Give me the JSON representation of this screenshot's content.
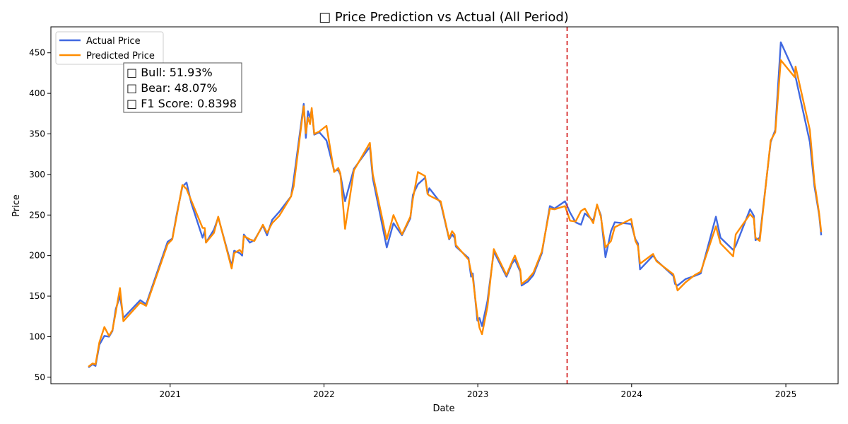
{
  "chart_data": {
    "type": "line",
    "title": "□ Price Prediction vs Actual (All Period)",
    "xlabel": "Date",
    "ylabel": "Price",
    "xlim": [
      "2020-03-24",
      "2025-05-05"
    ],
    "ylim": [
      42,
      482
    ],
    "x_ticks": [
      "2021-01-01",
      "2022-01-01",
      "2023-01-01",
      "2024-01-01",
      "2025-01-01"
    ],
    "x_tick_labels": [
      "2021",
      "2022",
      "2023",
      "2024",
      "2025"
    ],
    "y_ticks": [
      50,
      100,
      150,
      200,
      250,
      300,
      350,
      400,
      450
    ],
    "y_tick_labels": [
      "50",
      "100",
      "150",
      "200",
      "250",
      "300",
      "350",
      "400",
      "450"
    ],
    "grid": false,
    "legend_position": "upper-left",
    "split_date": "2023-08-01",
    "split_line_color": "#d62728",
    "annotation_lines": [
      "□ Bull: 51.93%",
      "□ Bear: 48.07%",
      "□ F1 Score: 0.8398"
    ],
    "series": [
      {
        "name": "Actual Price",
        "color": "#4169e1",
        "points": [
          [
            "2020-06-21",
            62
          ],
          [
            "2020-07-01",
            66
          ],
          [
            "2020-07-08",
            64
          ],
          [
            "2020-07-17",
            90
          ],
          [
            "2020-07-29",
            101
          ],
          [
            "2020-08-09",
            100
          ],
          [
            "2020-08-17",
            107
          ],
          [
            "2020-08-25",
            134
          ],
          [
            "2020-09-04",
            150
          ],
          [
            "2020-09-12",
            123
          ],
          [
            "2020-10-22",
            145
          ],
          [
            "2020-11-05",
            140
          ],
          [
            "2020-12-26",
            217
          ],
          [
            "2021-01-06",
            221
          ],
          [
            "2021-01-17",
            252
          ],
          [
            "2021-01-30",
            285
          ],
          [
            "2021-02-09",
            290
          ],
          [
            "2021-02-20",
            265
          ],
          [
            "2021-03-19",
            222
          ],
          [
            "2021-03-24",
            230
          ],
          [
            "2021-03-27",
            216
          ],
          [
            "2021-04-15",
            232
          ],
          [
            "2021-04-25",
            247
          ],
          [
            "2021-05-27",
            187
          ],
          [
            "2021-06-02",
            206
          ],
          [
            "2021-06-15",
            203
          ],
          [
            "2021-06-21",
            200
          ],
          [
            "2021-06-25",
            226
          ],
          [
            "2021-07-09",
            216
          ],
          [
            "2021-07-20",
            219
          ],
          [
            "2021-08-09",
            237
          ],
          [
            "2021-08-19",
            225
          ],
          [
            "2021-08-31",
            244
          ],
          [
            "2021-09-17",
            254
          ],
          [
            "2021-10-15",
            273
          ],
          [
            "2021-10-21",
            293
          ],
          [
            "2021-11-14",
            387
          ],
          [
            "2021-11-19",
            345
          ],
          [
            "2021-11-24",
            378
          ],
          [
            "2021-11-29",
            370
          ],
          [
            "2021-12-03",
            380
          ],
          [
            "2021-12-09",
            349
          ],
          [
            "2021-12-21",
            352
          ],
          [
            "2022-01-07",
            342
          ],
          [
            "2022-01-25",
            305
          ],
          [
            "2022-02-04",
            305
          ],
          [
            "2022-02-09",
            300
          ],
          [
            "2022-02-20",
            267
          ],
          [
            "2022-03-13",
            307
          ],
          [
            "2022-04-20",
            334
          ],
          [
            "2022-04-27",
            295
          ],
          [
            "2022-05-30",
            210
          ],
          [
            "2022-06-15",
            240
          ],
          [
            "2022-07-05",
            225
          ],
          [
            "2022-07-25",
            246
          ],
          [
            "2022-07-31",
            275
          ],
          [
            "2022-08-12",
            288
          ],
          [
            "2022-08-29",
            296
          ],
          [
            "2022-09-04",
            276
          ],
          [
            "2022-09-08",
            283
          ],
          [
            "2022-10-05",
            265
          ],
          [
            "2022-10-25",
            220
          ],
          [
            "2022-11-01",
            226
          ],
          [
            "2022-11-07",
            222
          ],
          [
            "2022-11-10",
            211
          ],
          [
            "2022-12-10",
            197
          ],
          [
            "2022-12-16",
            174
          ],
          [
            "2022-12-20",
            178
          ],
          [
            "2022-12-31",
            120
          ],
          [
            "2023-01-05",
            123
          ],
          [
            "2023-01-11",
            113
          ],
          [
            "2023-01-24",
            144
          ],
          [
            "2023-02-08",
            205
          ],
          [
            "2023-03-10",
            174
          ],
          [
            "2023-03-23",
            190
          ],
          [
            "2023-03-30",
            195
          ],
          [
            "2023-04-12",
            180
          ],
          [
            "2023-04-15",
            163
          ],
          [
            "2023-04-30",
            168
          ],
          [
            "2023-05-13",
            176
          ],
          [
            "2023-06-02",
            203
          ],
          [
            "2023-06-21",
            261
          ],
          [
            "2023-07-02",
            258
          ],
          [
            "2023-07-27",
            267
          ],
          [
            "2023-08-08",
            253
          ],
          [
            "2023-08-21",
            241
          ],
          [
            "2023-09-03",
            238
          ],
          [
            "2023-09-12",
            252
          ],
          [
            "2023-10-02",
            243
          ],
          [
            "2023-10-11",
            262
          ],
          [
            "2023-10-20",
            250
          ],
          [
            "2023-10-31",
            198
          ],
          [
            "2023-11-13",
            230
          ],
          [
            "2023-11-22",
            241
          ],
          [
            "2023-12-31",
            239
          ],
          [
            "2024-01-10",
            220
          ],
          [
            "2024-01-16",
            215
          ],
          [
            "2024-01-21",
            183
          ],
          [
            "2024-02-21",
            200
          ],
          [
            "2024-02-29",
            194
          ],
          [
            "2024-04-09",
            175
          ],
          [
            "2024-04-13",
            165
          ],
          [
            "2024-04-19",
            163
          ],
          [
            "2024-05-08",
            171
          ],
          [
            "2024-05-30",
            175
          ],
          [
            "2024-06-13",
            178
          ],
          [
            "2024-07-19",
            248
          ],
          [
            "2024-07-30",
            222
          ],
          [
            "2024-08-29",
            207
          ],
          [
            "2024-09-04",
            212
          ],
          [
            "2024-10-08",
            257
          ],
          [
            "2024-10-17",
            249
          ],
          [
            "2024-10-21",
            219
          ],
          [
            "2024-10-31",
            222
          ],
          [
            "2024-11-26",
            340
          ],
          [
            "2024-12-07",
            355
          ],
          [
            "2024-12-20",
            463
          ],
          [
            "2025-01-22",
            425
          ],
          [
            "2025-02-27",
            340
          ],
          [
            "2025-03-10",
            285
          ],
          [
            "2025-03-21",
            250
          ],
          [
            "2025-03-26",
            225
          ]
        ]
      },
      {
        "name": "Predicted Price",
        "color": "#ff8c00",
        "points": [
          [
            "2020-06-21",
            63
          ],
          [
            "2020-07-01",
            67
          ],
          [
            "2020-07-08",
            66
          ],
          [
            "2020-07-17",
            93
          ],
          [
            "2020-07-29",
            112
          ],
          [
            "2020-08-09",
            101
          ],
          [
            "2020-08-17",
            108
          ],
          [
            "2020-08-25",
            130
          ],
          [
            "2020-09-04",
            160
          ],
          [
            "2020-09-12",
            119
          ],
          [
            "2020-10-22",
            142
          ],
          [
            "2020-11-05",
            138
          ],
          [
            "2020-12-26",
            214
          ],
          [
            "2021-01-06",
            220
          ],
          [
            "2021-01-17",
            250
          ],
          [
            "2021-01-30",
            287
          ],
          [
            "2021-02-09",
            282
          ],
          [
            "2021-02-20",
            268
          ],
          [
            "2021-03-19",
            234
          ],
          [
            "2021-03-24",
            234
          ],
          [
            "2021-03-27",
            216
          ],
          [
            "2021-04-15",
            228
          ],
          [
            "2021-04-25",
            248
          ],
          [
            "2021-05-27",
            184
          ],
          [
            "2021-06-02",
            203
          ],
          [
            "2021-06-15",
            207
          ],
          [
            "2021-06-21",
            203
          ],
          [
            "2021-06-25",
            224
          ],
          [
            "2021-07-09",
            220
          ],
          [
            "2021-07-20",
            218
          ],
          [
            "2021-08-09",
            238
          ],
          [
            "2021-08-19",
            228
          ],
          [
            "2021-08-31",
            240
          ],
          [
            "2021-09-17",
            249
          ],
          [
            "2021-10-15",
            273
          ],
          [
            "2021-10-21",
            285
          ],
          [
            "2021-11-14",
            384
          ],
          [
            "2021-11-19",
            351
          ],
          [
            "2021-11-24",
            370
          ],
          [
            "2021-11-29",
            362
          ],
          [
            "2021-12-03",
            382
          ],
          [
            "2021-12-09",
            350
          ],
          [
            "2021-12-21",
            353
          ],
          [
            "2022-01-07",
            360
          ],
          [
            "2022-01-25",
            303
          ],
          [
            "2022-02-04",
            308
          ],
          [
            "2022-02-09",
            301
          ],
          [
            "2022-02-20",
            233
          ],
          [
            "2022-03-13",
            305
          ],
          [
            "2022-04-20",
            339
          ],
          [
            "2022-04-27",
            300
          ],
          [
            "2022-05-30",
            220
          ],
          [
            "2022-06-15",
            250
          ],
          [
            "2022-07-05",
            226
          ],
          [
            "2022-07-25",
            248
          ],
          [
            "2022-07-31",
            270
          ],
          [
            "2022-08-12",
            303
          ],
          [
            "2022-08-29",
            298
          ],
          [
            "2022-09-04",
            276
          ],
          [
            "2022-09-08",
            274
          ],
          [
            "2022-10-05",
            267
          ],
          [
            "2022-10-25",
            221
          ],
          [
            "2022-11-01",
            230
          ],
          [
            "2022-11-07",
            226
          ],
          [
            "2022-11-10",
            213
          ],
          [
            "2022-12-10",
            195
          ],
          [
            "2022-12-16",
            180
          ],
          [
            "2022-12-20",
            173
          ],
          [
            "2022-12-31",
            126
          ],
          [
            "2023-01-05",
            111
          ],
          [
            "2023-01-11",
            103
          ],
          [
            "2023-01-24",
            137
          ],
          [
            "2023-02-08",
            208
          ],
          [
            "2023-03-10",
            176
          ],
          [
            "2023-03-23",
            192
          ],
          [
            "2023-03-30",
            200
          ],
          [
            "2023-04-12",
            182
          ],
          [
            "2023-04-15",
            165
          ],
          [
            "2023-04-30",
            171
          ],
          [
            "2023-05-13",
            179
          ],
          [
            "2023-06-02",
            205
          ],
          [
            "2023-06-21",
            258
          ],
          [
            "2023-07-02",
            257
          ],
          [
            "2023-07-27",
            261
          ],
          [
            "2023-08-08",
            243
          ],
          [
            "2023-08-21",
            242
          ],
          [
            "2023-09-03",
            255
          ],
          [
            "2023-09-12",
            258
          ],
          [
            "2023-10-02",
            240
          ],
          [
            "2023-10-11",
            263
          ],
          [
            "2023-10-20",
            248
          ],
          [
            "2023-10-31",
            210
          ],
          [
            "2023-11-13",
            218
          ],
          [
            "2023-11-22",
            235
          ],
          [
            "2023-12-31",
            245
          ],
          [
            "2024-01-10",
            218
          ],
          [
            "2024-01-16",
            212
          ],
          [
            "2024-01-21",
            190
          ],
          [
            "2024-02-21",
            202
          ],
          [
            "2024-02-29",
            193
          ],
          [
            "2024-04-09",
            177
          ],
          [
            "2024-04-13",
            169
          ],
          [
            "2024-04-19",
            157
          ],
          [
            "2024-05-08",
            167
          ],
          [
            "2024-05-30",
            176
          ],
          [
            "2024-06-13",
            180
          ],
          [
            "2024-07-19",
            236
          ],
          [
            "2024-07-30",
            215
          ],
          [
            "2024-08-29",
            199
          ],
          [
            "2024-09-04",
            226
          ],
          [
            "2024-10-08",
            251
          ],
          [
            "2024-10-17",
            246
          ],
          [
            "2024-10-21",
            222
          ],
          [
            "2024-10-31",
            218
          ],
          [
            "2024-11-26",
            342
          ],
          [
            "2024-12-07",
            352
          ],
          [
            "2024-12-20",
            441
          ],
          [
            "2025-01-22",
            420
          ],
          [
            "2025-01-24",
            433
          ],
          [
            "2025-02-27",
            355
          ],
          [
            "2025-03-10",
            290
          ],
          [
            "2025-03-21",
            252
          ],
          [
            "2025-03-26",
            229
          ]
        ]
      }
    ]
  }
}
